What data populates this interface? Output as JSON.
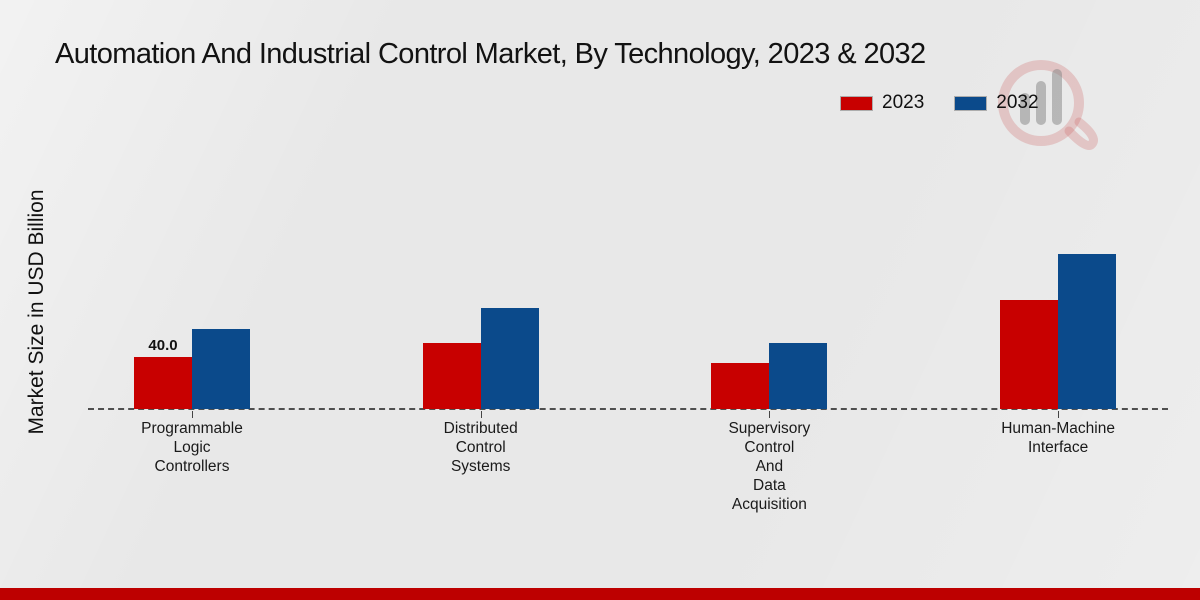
{
  "chart_data": {
    "type": "bar",
    "title": "Automation And Industrial Control Market, By Technology, 2023 & 2032",
    "ylabel": "Market Size in USD Billion",
    "xlabel": "",
    "categories": [
      "Programmable\nLogic\nControllers",
      "Distributed\nControl\nSystems",
      "Supervisory\nControl\nAnd\nData\nAcquisition",
      "Human-Machine\nInterface"
    ],
    "series": [
      {
        "name": "2023",
        "color": "#c80000",
        "values": [
          40.0,
          51.4,
          35.9,
          84.5
        ]
      },
      {
        "name": "2032",
        "color": "#0b4a8b",
        "values": [
          62.3,
          78.1,
          50.9,
          120.0
        ]
      }
    ],
    "bar_labels": [
      {
        "series": "2023",
        "category_index": 0,
        "text": "40.0"
      }
    ],
    "ylim": [
      0,
      130
    ],
    "grid": false,
    "legend_position": "top-right",
    "baseline_style": "dashed"
  },
  "legend": {
    "items": [
      {
        "label": "2023",
        "color": "#c80000"
      },
      {
        "label": "2032",
        "color": "#0b4a8b"
      }
    ]
  },
  "colors": {
    "background": "#e8e8e8",
    "baseline": "#4f4f4f",
    "footer_strip": "#bd0000",
    "red_2023": "#c80000",
    "blue_2032": "#0b4a8b"
  },
  "icons": {
    "watermark": "magnifier-bar-chart-logo"
  }
}
